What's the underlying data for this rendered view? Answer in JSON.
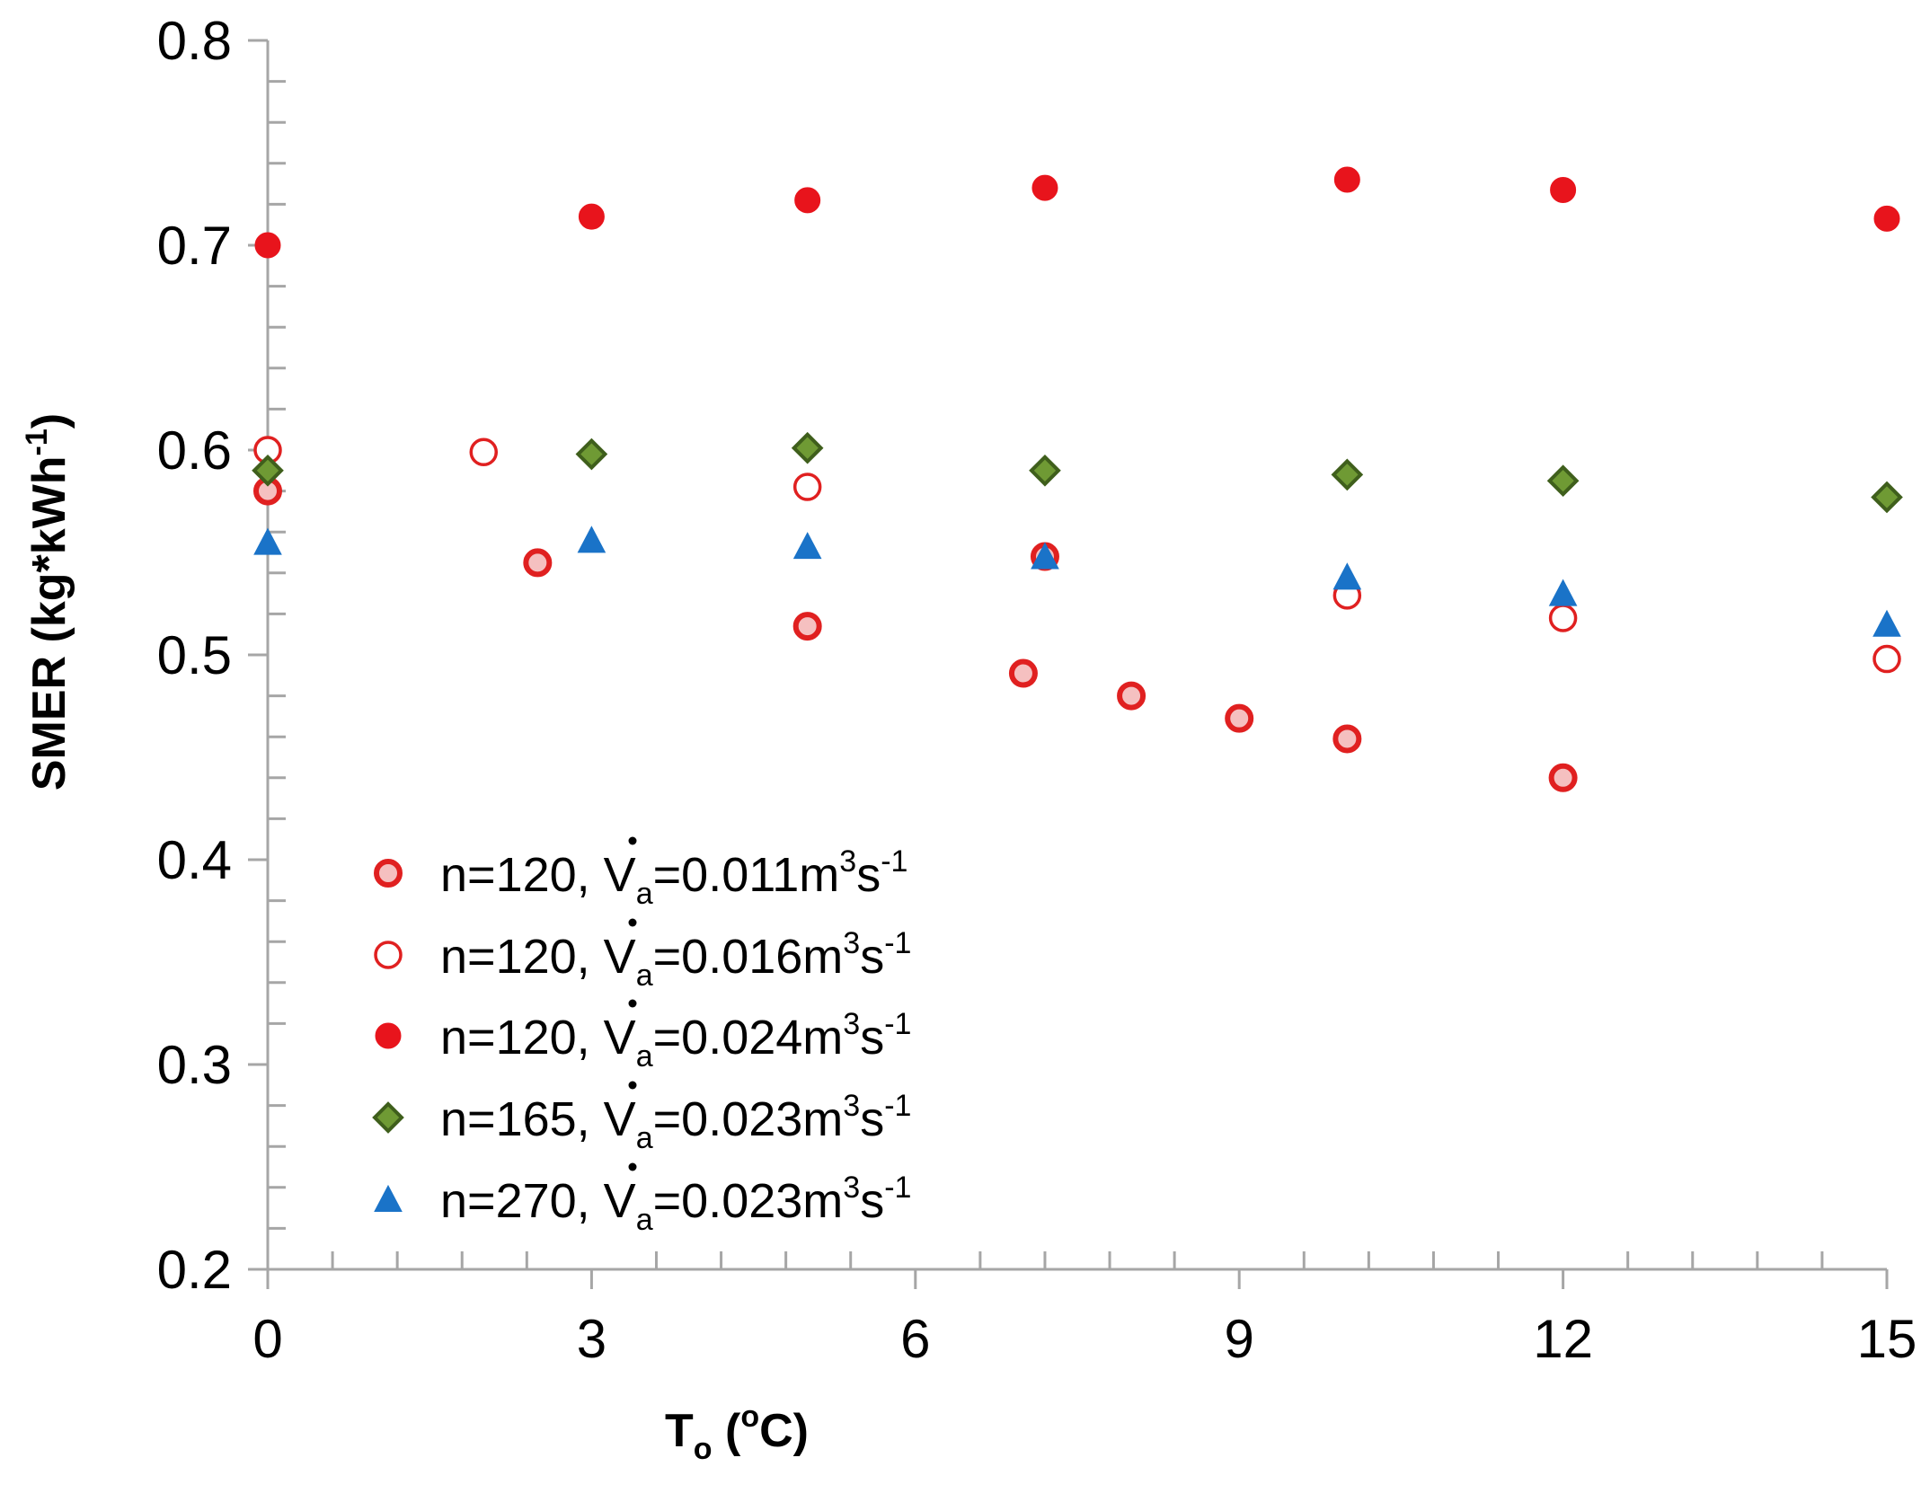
{
  "chart_data": {
    "type": "scatter",
    "xlabel": {
      "main": "T",
      "sub": "o",
      "pre_unit": " (",
      "unit_sup": "o",
      "unit_rest": "C)"
    },
    "ylabel": {
      "main": "SMER (kg*kWh",
      "sup": "-1",
      "close": ")"
    },
    "xlim": [
      0,
      15
    ],
    "ylim": [
      0.2,
      0.8
    ],
    "x_ticks": [
      0,
      3,
      6,
      9,
      12,
      15
    ],
    "x_tick_labels": [
      "0",
      "3",
      "6",
      "9",
      "12",
      "15"
    ],
    "y_ticks": [
      0.2,
      0.3,
      0.4,
      0.5,
      0.6,
      0.7,
      0.8
    ],
    "y_tick_labels": [
      "0.2",
      "0.3",
      "0.4",
      "0.5",
      "0.6",
      "0.7",
      "0.8"
    ],
    "grid": false,
    "legend_position": "bottom-left inside plot",
    "series": [
      {
        "name": "n=120, V̇a=0.011m3s-1",
        "label": {
          "prefix": "n=120, ",
          "sym": "V",
          "sub": "a",
          "value": "=0.011m",
          "sup1": "3",
          "mid": "s",
          "sup2": "-1"
        },
        "marker": "circle-light",
        "color": "#e02020",
        "fill": "#f5c0c0",
        "x": [
          0,
          2.5,
          5,
          7,
          7.2,
          8,
          9,
          10,
          12
        ],
        "y": [
          0.58,
          0.545,
          0.514,
          0.491,
          0.548,
          0.48,
          0.469,
          0.459,
          0.44
        ]
      },
      {
        "name": "n=120, V̇a=0.016m3s-1",
        "label": {
          "prefix": "n=120, ",
          "sym": "V",
          "sub": "a",
          "value": "=0.016m",
          "sup1": "3",
          "mid": "s",
          "sup2": "-1"
        },
        "marker": "circle-open",
        "color": "#e02020",
        "fill": "#ffffff",
        "x": [
          0,
          2,
          5,
          10,
          12,
          15
        ],
        "y": [
          0.6,
          0.599,
          0.582,
          0.529,
          0.518,
          0.498
        ]
      },
      {
        "name": "n=120, V̇a=0.024m3s-1",
        "label": {
          "prefix": "n=120, ",
          "sym": "V",
          "sub": "a",
          "value": "=0.024m",
          "sup1": "3",
          "mid": "s",
          "sup2": "-1"
        },
        "marker": "circle-filled",
        "color": "#e8141c",
        "fill": "#e8141c",
        "x": [
          0,
          3,
          5,
          7.2,
          10,
          12,
          15
        ],
        "y": [
          0.7,
          0.714,
          0.722,
          0.728,
          0.732,
          0.727,
          0.713
        ]
      },
      {
        "name": "n=165, V̇a=0.023m3s-1",
        "label": {
          "prefix": "n=165, ",
          "sym": "V",
          "sub": "a",
          "value": "=0.023m",
          "sup1": "3",
          "mid": "s",
          "sup2": "-1"
        },
        "marker": "diamond",
        "color": "#3f5f1c",
        "fill": "#6f9a34",
        "x": [
          0,
          3,
          5,
          7.2,
          10,
          12,
          15
        ],
        "y": [
          0.59,
          0.598,
          0.601,
          0.59,
          0.588,
          0.585,
          0.577
        ]
      },
      {
        "name": "n=270, V̇a=0.023m3s-1",
        "label": {
          "prefix": "n=270, ",
          "sym": "V",
          "sub": "a",
          "value": "=0.023m",
          "sup1": "3",
          "mid": "s",
          "sup2": "-1"
        },
        "marker": "triangle",
        "color": "#1a73c8",
        "fill": "#1a73c8",
        "x": [
          0,
          3,
          5,
          7.2,
          10,
          12,
          15
        ],
        "y": [
          0.555,
          0.556,
          0.553,
          0.548,
          0.538,
          0.53,
          0.515
        ]
      }
    ]
  }
}
